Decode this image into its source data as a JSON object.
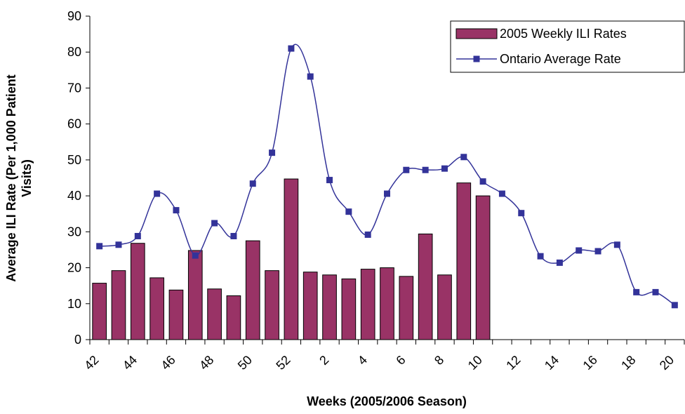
{
  "chart_data": {
    "type": "bar-line",
    "x_label": "Weeks (2005/2006 Season)",
    "y_label": [
      "Average ILI Rate (Per 1,000 Patient",
      "Visits)"
    ],
    "categories": [
      "42",
      null,
      "44",
      null,
      "46",
      null,
      "48",
      null,
      "50",
      null,
      "52",
      null,
      "2",
      null,
      "4",
      null,
      "6",
      null,
      "8",
      null,
      "10",
      null,
      "12",
      null,
      "14",
      null,
      "16",
      null,
      "18",
      null,
      "20"
    ],
    "series": [
      {
        "name": "2005 Weekly ILI Rates",
        "type": "bar",
        "color": "#993366",
        "values": [
          15.7,
          19.2,
          26.8,
          17.2,
          13.8,
          24.8,
          14.1,
          12.2,
          27.5,
          19.2,
          44.7,
          18.8,
          18.0,
          16.9,
          19.6,
          20.0,
          17.6,
          29.4,
          18.0,
          43.6,
          40.0,
          null,
          null,
          null,
          null,
          null,
          null,
          null,
          null,
          null,
          null
        ]
      },
      {
        "name": "Ontario Average Rate",
        "type": "line",
        "color": "#333399",
        "values": [
          26,
          26.4,
          28.8,
          40.6,
          36,
          23.4,
          32.4,
          28.8,
          43.4,
          52,
          81,
          73.2,
          44.4,
          35.6,
          29.2,
          40.6,
          47.2,
          47.2,
          47.6,
          50.8,
          44,
          40.6,
          35.2,
          23.2,
          21.4,
          24.8,
          24.6,
          26.4,
          13.2,
          13.2,
          9.6
        ]
      }
    ],
    "ylim": [
      0,
      90
    ],
    "yticks": [
      0,
      10,
      20,
      30,
      40,
      50,
      60,
      70,
      80,
      90
    ],
    "grid": false,
    "legend": "top-right"
  }
}
